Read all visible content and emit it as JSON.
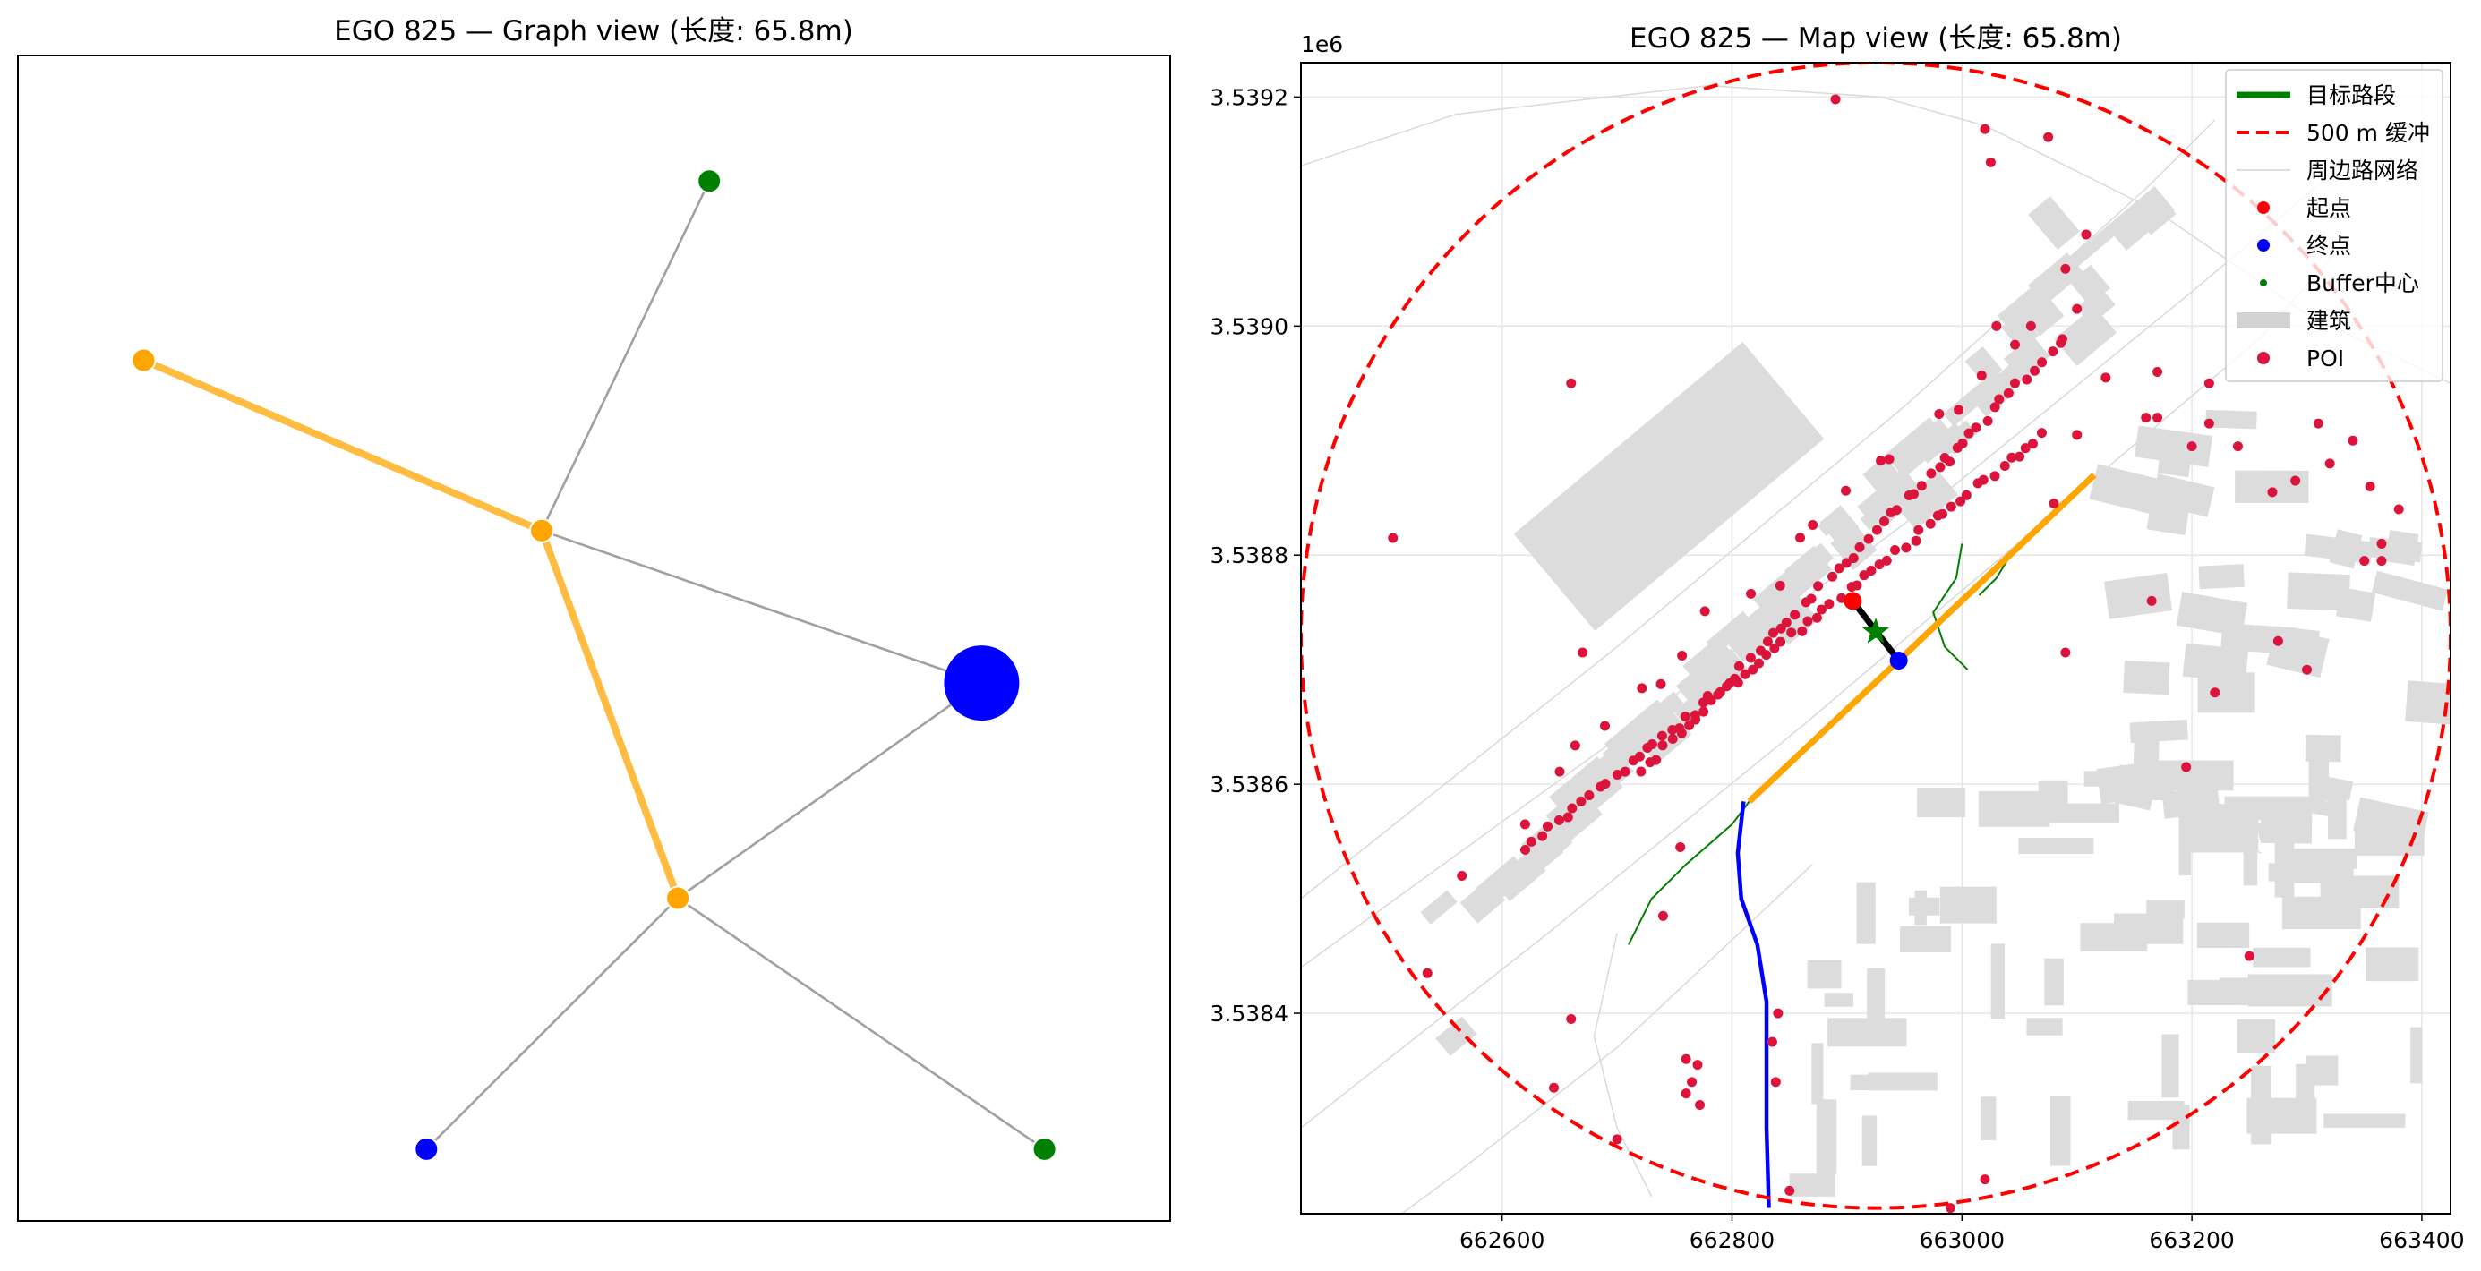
{
  "chart_data": [
    {
      "type": "network",
      "title": "EGO 825 — Graph view (长度: 65.8m)",
      "nodes": [
        {
          "id": "n1",
          "x": -0.48,
          "y": 0.52,
          "color": "#ffa500",
          "size": "small"
        },
        {
          "id": "n2",
          "x": 0.06,
          "y": 0.72,
          "color": "#008000",
          "size": "small"
        },
        {
          "id": "n3",
          "x": -0.1,
          "y": 0.33,
          "color": "#ffa500",
          "size": "small"
        },
        {
          "id": "ego",
          "x": 0.32,
          "y": 0.16,
          "color": "#0000ff",
          "size": "large"
        },
        {
          "id": "n4",
          "x": 0.03,
          "y": -0.08,
          "color": "#ffa500",
          "size": "small"
        },
        {
          "id": "n5",
          "x": -0.21,
          "y": -0.36,
          "color": "#0000ff",
          "size": "small"
        },
        {
          "id": "n6",
          "x": 0.38,
          "y": -0.36,
          "color": "#008000",
          "size": "small"
        }
      ],
      "edges": [
        {
          "from": "n1",
          "to": "n3",
          "highlight": true
        },
        {
          "from": "n3",
          "to": "n4",
          "highlight": true
        },
        {
          "from": "n3",
          "to": "n2",
          "highlight": false
        },
        {
          "from": "n3",
          "to": "ego",
          "highlight": false
        },
        {
          "from": "ego",
          "to": "n4",
          "highlight": false
        },
        {
          "from": "n4",
          "to": "n5",
          "highlight": false
        },
        {
          "from": "n4",
          "to": "n6",
          "highlight": false
        }
      ],
      "colors": {
        "edge": "#a0a0a0",
        "highlight_edge": "#ffa500"
      }
    },
    {
      "type": "map",
      "title": "EGO 825 — Map view (长度: 65.8m)",
      "xlim": [
        662425,
        663425
      ],
      "ylim": [
        3538225,
        3539230
      ],
      "x_ticks": [
        "662600",
        "662800",
        "663000",
        "663200",
        "663400"
      ],
      "y_ticks": [
        "3.5384",
        "3.5386",
        "3.5388",
        "3.5390",
        "3.5392"
      ],
      "y_offset_label": "1e6",
      "grid": true,
      "legend": {
        "position": "top-right",
        "entries": [
          {
            "label": "目标路段",
            "kind": "line",
            "color": "#008000"
          },
          {
            "label": "500 m 缓冲",
            "kind": "dashed",
            "color": "#ff0000"
          },
          {
            "label": "周边路网络",
            "kind": "thin-line",
            "color": "#d3d3d3"
          },
          {
            "label": "起点",
            "kind": "dot",
            "color": "#ff0000"
          },
          {
            "label": "终点",
            "kind": "dot",
            "color": "#0000ff"
          },
          {
            "label": "Buffer中心",
            "kind": "star",
            "color": "#008000"
          },
          {
            "label": "建筑",
            "kind": "patch",
            "color": "#d3d3d3"
          },
          {
            "label": "POI",
            "kind": "dot",
            "color": "#dc143c"
          }
        ]
      },
      "buffer": {
        "center": [
          662925,
          3538730
        ],
        "radius": 500
      },
      "ego_segment": {
        "start": [
          662905,
          3538760
        ],
        "end": [
          662945,
          3538708
        ],
        "center": [
          662925,
          3538733
        ]
      },
      "orange_road": [
        [
          662815,
          3538585
        ],
        [
          662945,
          3538708
        ],
        [
          663115,
          3538870
        ]
      ],
      "blue_road": [
        [
          662810,
          3538585
        ],
        [
          662805,
          3538540
        ],
        [
          662808,
          3538500
        ],
        [
          662822,
          3538460
        ],
        [
          662830,
          3538410
        ],
        [
          662830,
          3538360
        ],
        [
          662830,
          3538300
        ],
        [
          662832,
          3538230
        ]
      ],
      "green_roads": [
        [
          [
            662710,
            3538460
          ],
          [
            662730,
            3538500
          ],
          [
            662760,
            3538530
          ],
          [
            662800,
            3538565
          ],
          [
            662815,
            3538585
          ]
        ],
        [
          [
            663000,
            3538810
          ],
          [
            662995,
            3538780
          ],
          [
            662975,
            3538750
          ],
          [
            662985,
            3538720
          ],
          [
            663005,
            3538700
          ]
        ],
        [
          [
            663045,
            3538805
          ],
          [
            663030,
            3538780
          ],
          [
            663015,
            3538765
          ]
        ]
      ],
      "poi": [
        [
          662890,
          3539198
        ],
        [
          663020,
          3539172
        ],
        [
          663075,
          3539165
        ],
        [
          663025,
          3539143
        ],
        [
          662660,
          3538950
        ],
        [
          662985,
          3538885
        ],
        [
          662505,
          3538815
        ],
        [
          662565,
          3538520
        ],
        [
          662535,
          3538435
        ],
        [
          662660,
          3538395
        ],
        [
          662645,
          3538335
        ],
        [
          662700,
          3538290
        ],
        [
          662740,
          3538485
        ],
        [
          662850,
          3538245
        ],
        [
          662990,
          3538230
        ],
        [
          663020,
          3538255
        ],
        [
          663250,
          3538450
        ],
        [
          663365,
          3538810
        ],
        [
          663365,
          3538795
        ],
        [
          663310,
          3538915
        ],
        [
          663340,
          3538900
        ],
        [
          663320,
          3538880
        ],
        [
          663355,
          3538860
        ],
        [
          663380,
          3538840
        ],
        [
          663290,
          3538865
        ],
        [
          663270,
          3538855
        ],
        [
          663350,
          3538795
        ],
        [
          663170,
          3538960
        ],
        [
          663200,
          3538895
        ],
        [
          663240,
          3538895
        ],
        [
          663160,
          3538920
        ],
        [
          663215,
          3538915
        ],
        [
          663100,
          3538905
        ],
        [
          663080,
          3538845
        ],
        [
          663090,
          3538715
        ],
        [
          663170,
          3538920
        ],
        [
          663215,
          3538950
        ],
        [
          663275,
          3538725
        ],
        [
          663300,
          3538700
        ],
        [
          663220,
          3538680
        ],
        [
          663165,
          3538760
        ],
        [
          662760,
          3538360
        ],
        [
          662770,
          3538355
        ],
        [
          662765,
          3538340
        ],
        [
          662760,
          3538330
        ],
        [
          662772,
          3538320
        ],
        [
          662838,
          3538340
        ],
        [
          662835,
          3538375
        ],
        [
          662840,
          3538400
        ],
        [
          663195,
          3538615
        ],
        [
          662620,
          3538565
        ],
        [
          662755,
          3538545
        ],
        [
          662670,
          3538715
        ],
        [
          663108,
          3539080
        ],
        [
          663090,
          3539050
        ],
        [
          663060,
          3539000
        ],
        [
          663030,
          3539000
        ],
        [
          663100,
          3539015
        ],
        [
          663125,
          3538955
        ]
      ],
      "poi_band": {
        "lower": {
          "start": [
            662620,
            3538545
          ],
          "end": [
            663070,
            3538905
          ],
          "count": 65
        },
        "upper": {
          "start": [
            662720,
            3538610
          ],
          "end": [
            663090,
            3538990
          ],
          "count": 55
        },
        "sparse": {
          "start": [
            662650,
            3538610
          ],
          "end": [
            663040,
            3538980
          ],
          "count": 18
        }
      },
      "building_clusters": {
        "north_west": {
          "start": [
            662560,
            3538440
          ],
          "end": [
            663160,
            3539060
          ],
          "count": 38
        },
        "south_east": {
          "area": [
            [
              662850,
              3538265
            ],
            [
              663420,
              3538620
            ]
          ],
          "count": 60
        },
        "east": {
          "area": [
            [
              663140,
              3538560
            ],
            [
              663420,
              3538920
            ]
          ],
          "count": 35
        }
      },
      "colors": {
        "buffer": "#ff0000",
        "orange_road": "#ffa500",
        "blue_road": "#0000ff",
        "green_road": "#008000",
        "poi": "#dc143c",
        "building": "#dcdcdc",
        "network": "#d9d9d9"
      }
    }
  ]
}
